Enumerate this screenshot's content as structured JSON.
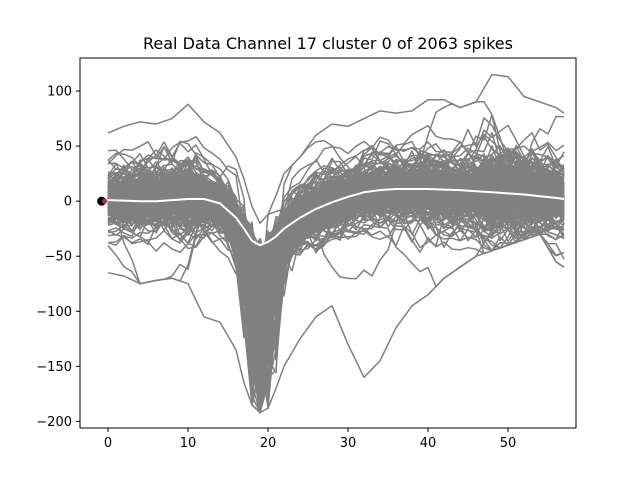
{
  "chart_data": {
    "type": "line",
    "title": "Real Data Channel 17 cluster 0 of 2063 spikes",
    "xlabel": "",
    "ylabel": "",
    "xlim": [
      -3.5,
      58.5
    ],
    "ylim": [
      -206,
      130
    ],
    "x_ticks": [
      0,
      10,
      20,
      30,
      40,
      50
    ],
    "y_ticks": [
      -200,
      -150,
      -100,
      -50,
      0,
      50,
      100
    ],
    "grid": false,
    "waveform_count": 2063,
    "waveform_color": "#808080",
    "mean_color": "#ffffff",
    "marker_color": "#000000",
    "marker_point": {
      "x": -0.8,
      "y": 0
    },
    "mean_waveform": {
      "x": [
        0,
        2,
        4,
        6,
        8,
        10,
        12,
        14,
        16,
        17,
        18,
        19,
        20,
        21,
        22,
        24,
        26,
        28,
        30,
        32,
        34,
        36,
        38,
        40,
        42,
        44,
        46,
        48,
        50,
        52,
        54,
        56,
        57
      ],
      "y": [
        1,
        0.5,
        0,
        0,
        1,
        2,
        2,
        -2,
        -15,
        -25,
        -36,
        -40,
        -37,
        -32,
        -25,
        -15,
        -7,
        -1,
        4,
        8,
        10,
        11,
        11,
        11,
        10.5,
        10,
        9,
        8,
        7,
        6,
        4.5,
        3,
        2
      ]
    },
    "waveform_envelope": {
      "x": [
        0,
        2,
        4,
        6,
        8,
        10,
        12,
        14,
        16,
        17,
        18,
        19,
        20,
        21,
        22,
        24,
        26,
        28,
        30,
        32,
        34,
        36,
        38,
        40,
        42,
        44,
        46,
        48,
        50,
        52,
        54,
        56,
        57
      ],
      "upper": [
        62,
        68,
        72,
        70,
        75,
        88,
        72,
        62,
        40,
        20,
        -5,
        -20,
        -12,
        5,
        25,
        40,
        60,
        70,
        68,
        75,
        82,
        80,
        82,
        92,
        92,
        85,
        90,
        115,
        113,
        95,
        90,
        85,
        80
      ],
      "lower": [
        -65,
        -68,
        -75,
        -72,
        -70,
        -75,
        -105,
        -110,
        -135,
        -165,
        -185,
        -192,
        -188,
        -170,
        -150,
        -125,
        -105,
        -95,
        -130,
        -160,
        -145,
        -115,
        -95,
        -85,
        -70,
        -60,
        -50,
        -45,
        -40,
        -35,
        -30,
        -55,
        -60
      ]
    }
  }
}
